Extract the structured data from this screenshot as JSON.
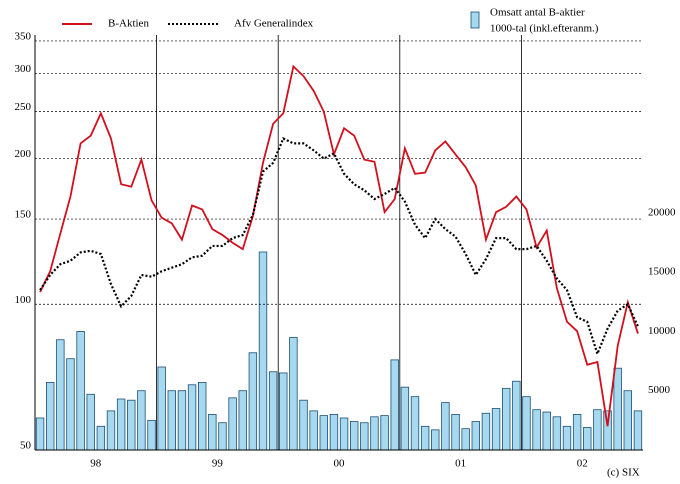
{
  "chart_data": {
    "type": "combo",
    "categories": [
      null,
      null,
      null,
      null,
      null,
      null,
      "98",
      null,
      null,
      null,
      null,
      null,
      null,
      null,
      null,
      null,
      null,
      null,
      "99",
      null,
      null,
      null,
      null,
      null,
      null,
      null,
      null,
      null,
      null,
      null,
      "00",
      null,
      null,
      null,
      null,
      null,
      null,
      null,
      null,
      null,
      null,
      null,
      "01",
      null,
      null,
      null,
      null,
      null,
      null,
      null,
      null,
      null,
      null,
      null,
      "02",
      null,
      null,
      null,
      null,
      null
    ],
    "series": [
      {
        "name": "B-Aktien",
        "kind": "line",
        "line_style": "solid",
        "color": "#d0101e",
        "axis": "y",
        "values": [
          106,
          117,
          140,
          167,
          215,
          223,
          248,
          220,
          177,
          175,
          199,
          164,
          151,
          147,
          136,
          160,
          157,
          143,
          139,
          134,
          130,
          152,
          196,
          236,
          248,
          310,
          296,
          276,
          250,
          204,
          231,
          223,
          199,
          197,
          155,
          165,
          210,
          186,
          187,
          208,
          217,
          204,
          192,
          176,
          136,
          155,
          159,
          167,
          157,
          131,
          142,
          108,
          92,
          88,
          75,
          76,
          56,
          82,
          101,
          87
        ]
      },
      {
        "name": "Afv Generalindex",
        "kind": "line",
        "line_style": "dotted",
        "color": "#000000",
        "axis": "y",
        "values": [
          107,
          115,
          121,
          123,
          128,
          129,
          127,
          110,
          99,
          104,
          115,
          114,
          117,
          119,
          121,
          125,
          126,
          132,
          132,
          137,
          139,
          153,
          188,
          196,
          220,
          215,
          215,
          208,
          200,
          205,
          186,
          177,
          172,
          165,
          169,
          174,
          163,
          146,
          137,
          150,
          143,
          138,
          127,
          115,
          124,
          137,
          137,
          130,
          130,
          132,
          123,
          113,
          107,
          94,
          92,
          79,
          89,
          97,
          100,
          90
        ]
      },
      {
        "name": "Omsatt antal B-aktier",
        "note": "1000-tal (inkl.efteranm.)",
        "kind": "bar",
        "color": "#a6d8f0",
        "axis": "y2",
        "values": [
          2700,
          5700,
          9300,
          7700,
          10000,
          4700,
          2000,
          3300,
          4300,
          4200,
          5000,
          2500,
          7000,
          5000,
          5000,
          5500,
          5700,
          3000,
          2300,
          4400,
          5000,
          8200,
          16700,
          6600,
          6500,
          9500,
          4200,
          3300,
          2900,
          3000,
          2700,
          2400,
          2300,
          2800,
          2900,
          7600,
          5300,
          4500,
          2000,
          1700,
          4000,
          3000,
          1800,
          2400,
          3100,
          3500,
          5200,
          5800,
          4500,
          3400,
          3200,
          2800,
          2000,
          3000,
          1900,
          3400,
          3300,
          6900,
          5000,
          3300
        ]
      }
    ],
    "ylog": true,
    "ylim": [
      50,
      360
    ],
    "yticks": [
      50,
      100,
      150,
      200,
      250,
      300,
      350
    ],
    "y2lim": [
      0,
      35000
    ],
    "y2ticks": [
      5000,
      10000,
      15000,
      20000
    ],
    "grid": true,
    "legend": "top",
    "source": "(c) SIX"
  }
}
